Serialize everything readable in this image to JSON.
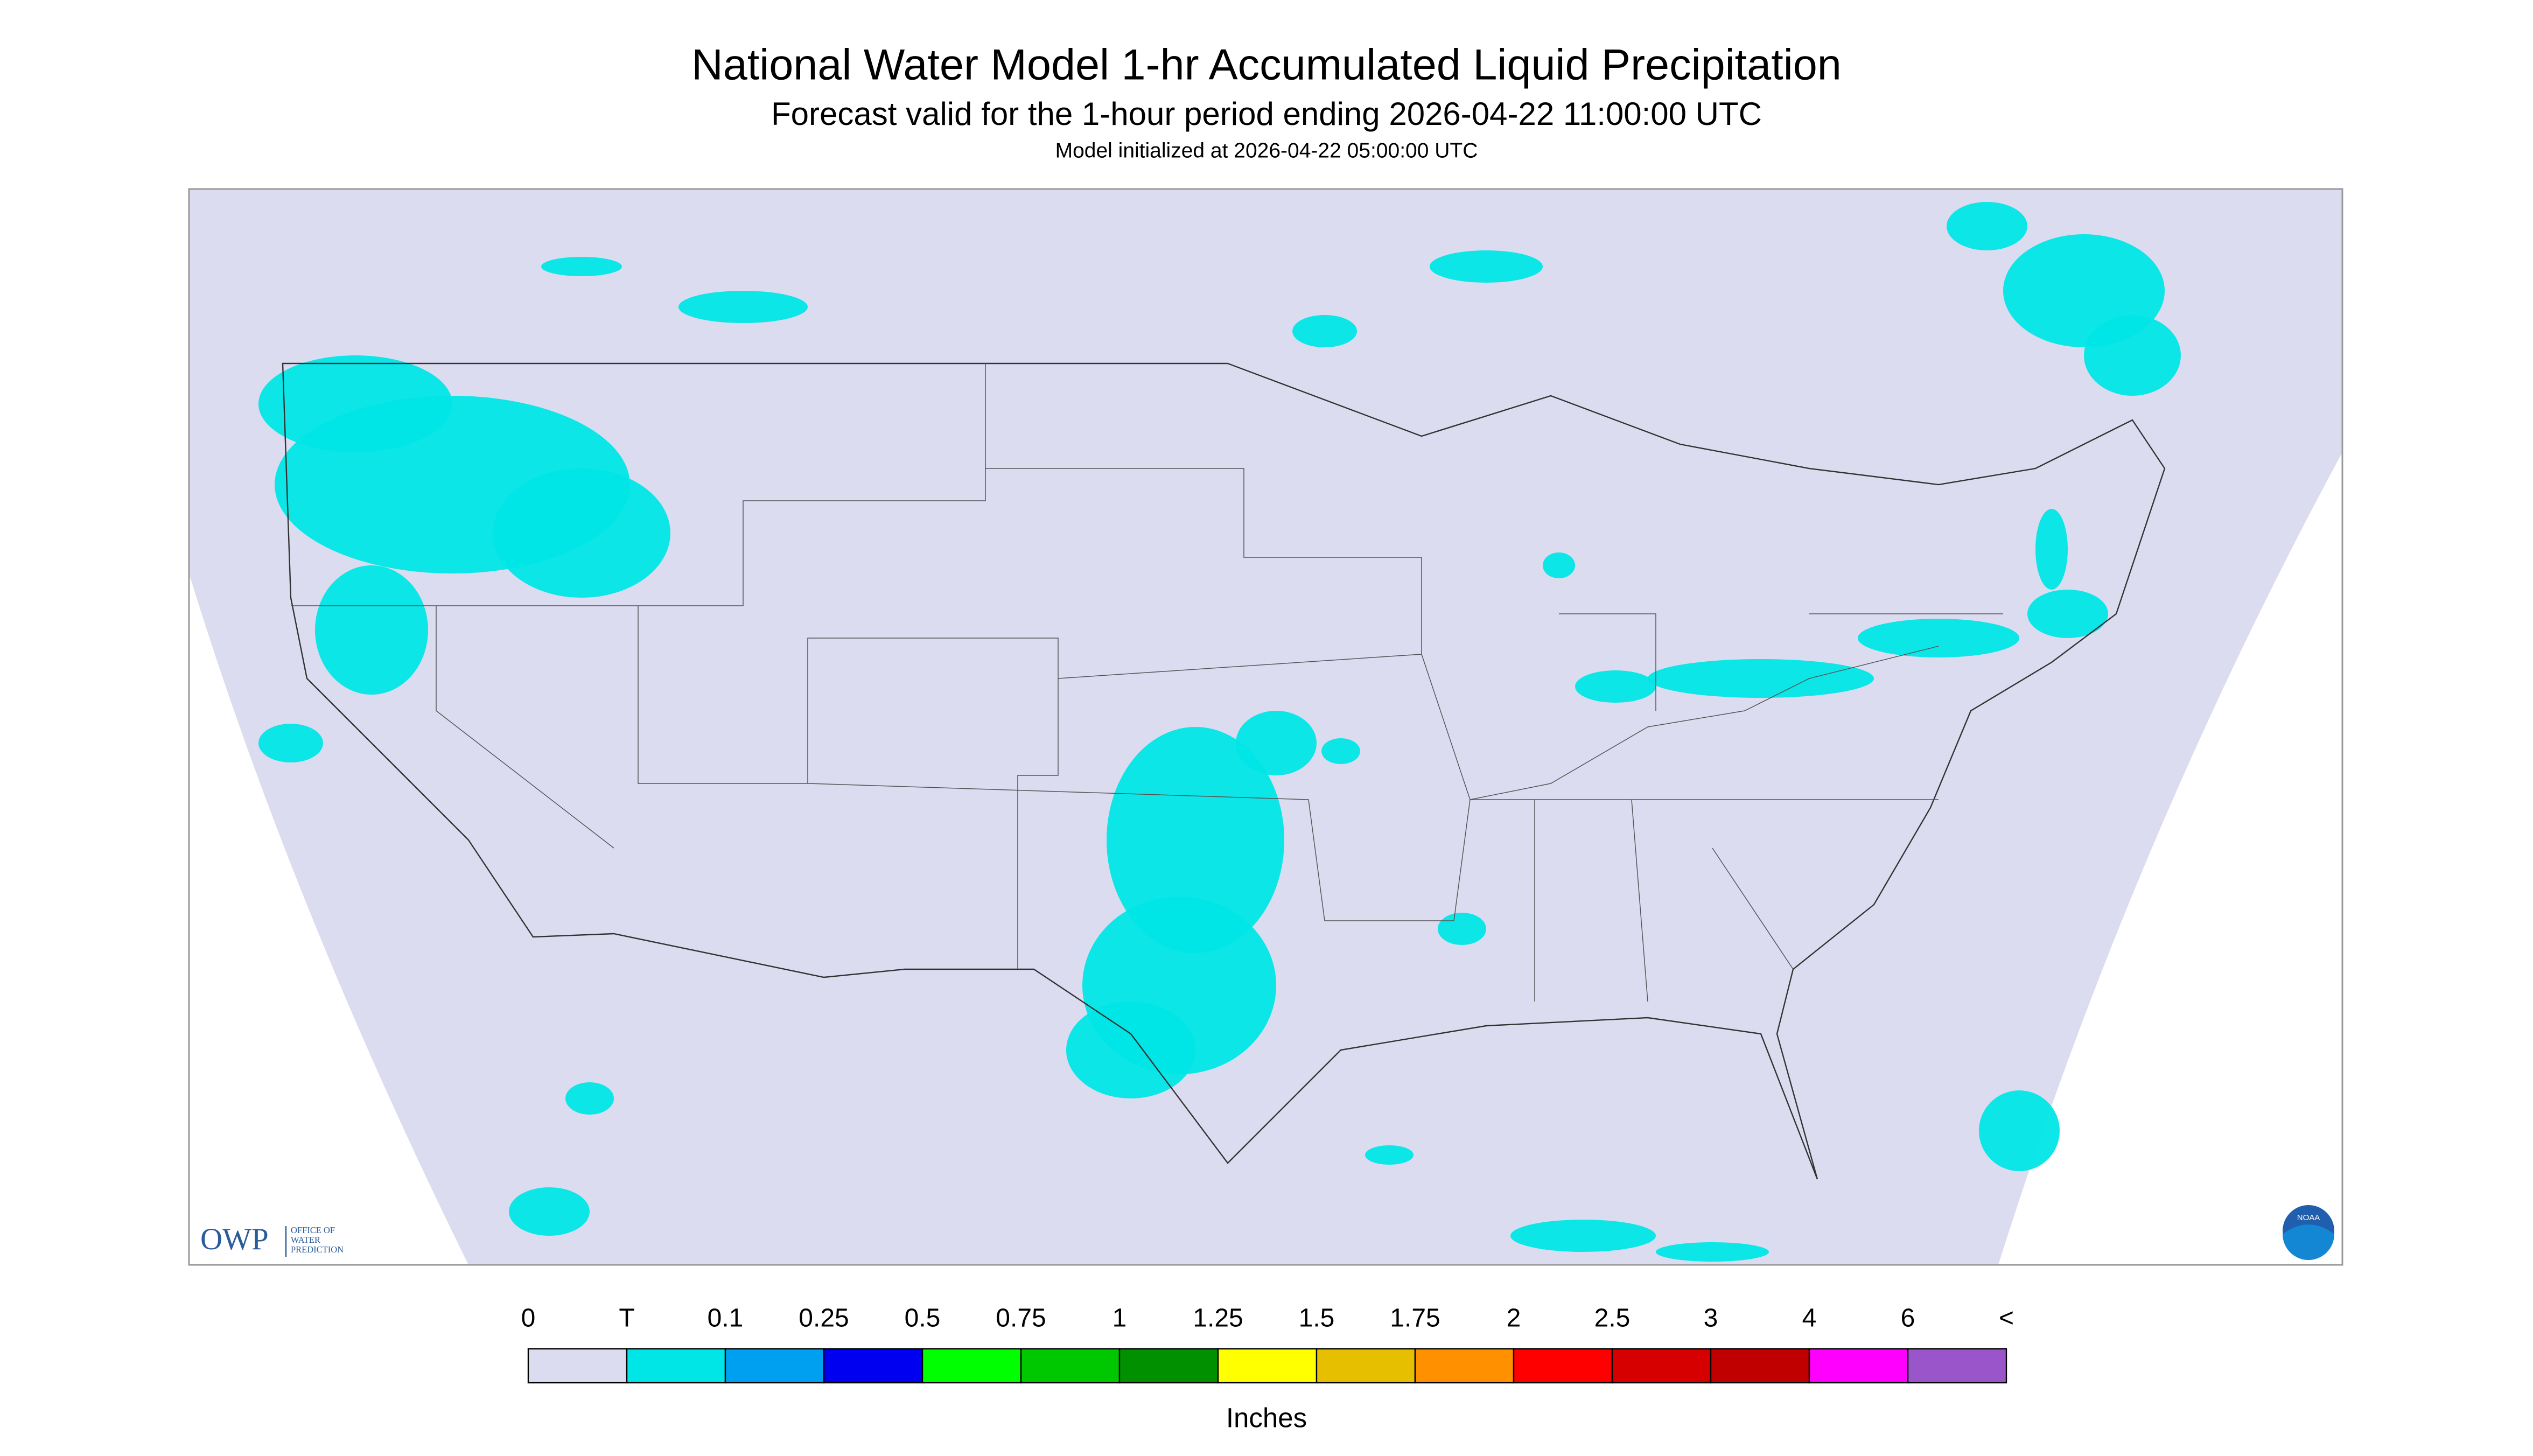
{
  "header": {
    "title": "National Water Model 1-hr Accumulated Liquid Precipitation",
    "subtitle": "Forecast valid for the 1-hour period ending 2026-04-22 11:00:00 UTC",
    "init": "Model initialized at 2026-04-22 05:00:00 UTC"
  },
  "legend": {
    "labels": [
      "0",
      "T",
      "0.1",
      "0.25",
      "0.5",
      "0.75",
      "1",
      "1.25",
      "1.5",
      "1.75",
      "2",
      "2.5",
      "3",
      "4",
      "6",
      "<"
    ],
    "colors": [
      "#dcdcf0",
      "#00e6e6",
      "#00a0f0",
      "#0000f0",
      "#00ff00",
      "#00c800",
      "#009000",
      "#ffff00",
      "#e6c000",
      "#ff9000",
      "#ff0000",
      "#d60000",
      "#c00000",
      "#ff00ff",
      "#9955c9"
    ],
    "unit": "Inches"
  },
  "logos": {
    "owp": "OWP",
    "owp_line1": "OFFICE OF",
    "owp_line2": "WATER",
    "owp_line3": "PREDICTION",
    "noaa": "NOAA"
  }
}
